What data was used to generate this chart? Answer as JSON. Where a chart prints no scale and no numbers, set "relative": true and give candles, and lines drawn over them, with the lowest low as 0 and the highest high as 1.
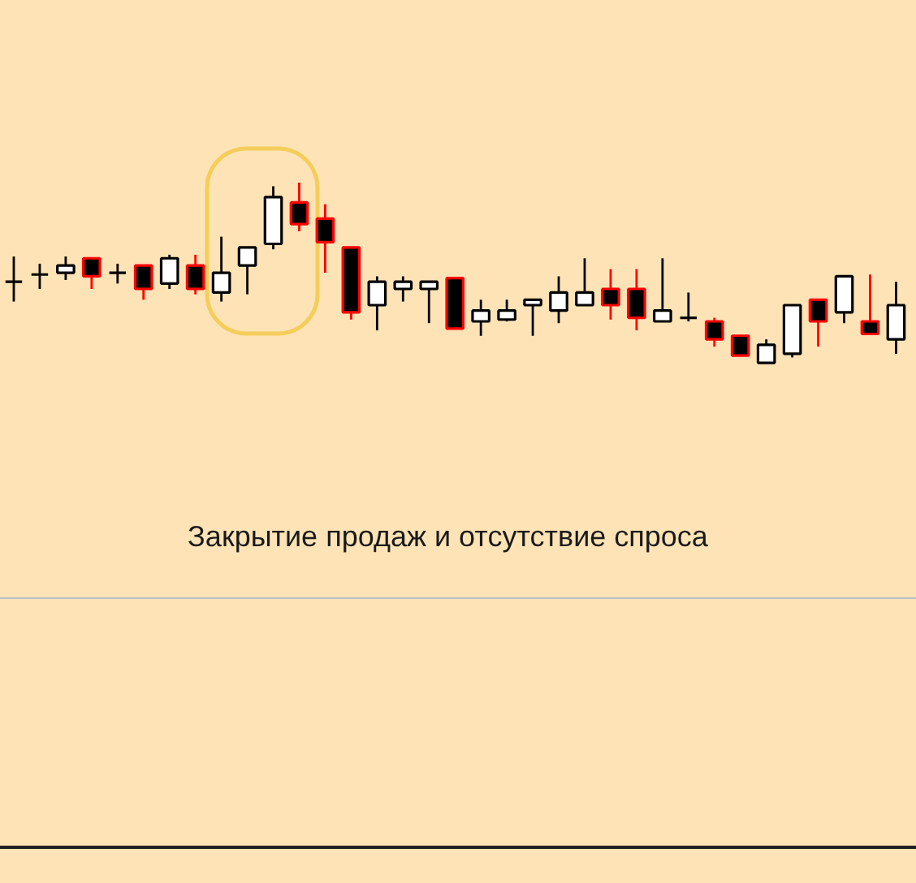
{
  "chart_data": {
    "type": "candlestick",
    "relative": true,
    "categories": [
      null,
      null,
      null,
      null,
      null,
      null,
      null,
      null,
      null,
      null,
      null,
      null,
      null,
      null,
      null,
      null,
      null,
      null,
      null,
      null,
      null,
      null,
      null,
      null,
      null,
      null,
      null,
      null,
      null,
      null,
      null,
      null,
      null,
      null,
      null
    ],
    "ohlc": [
      [
        0.45,
        0.59,
        0.34,
        0.45
      ],
      [
        0.49,
        0.55,
        0.41,
        0.49
      ],
      [
        0.5,
        0.59,
        0.46,
        0.54
      ],
      [
        0.58,
        0.58,
        0.41,
        0.48
      ],
      [
        0.5,
        0.55,
        0.44,
        0.5
      ],
      [
        0.54,
        0.54,
        0.35,
        0.41
      ],
      [
        0.44,
        0.6,
        0.41,
        0.58
      ],
      [
        0.54,
        0.6,
        0.38,
        0.41
      ],
      [
        0.39,
        0.7,
        0.34,
        0.5
      ],
      [
        0.54,
        0.64,
        0.38,
        0.64
      ],
      [
        0.66,
        0.98,
        0.63,
        0.92
      ],
      [
        0.89,
        1.0,
        0.73,
        0.77
      ],
      [
        0.8,
        0.88,
        0.5,
        0.67
      ],
      [
        0.64,
        0.64,
        0.24,
        0.28
      ],
      [
        0.32,
        0.48,
        0.18,
        0.45
      ],
      [
        0.41,
        0.48,
        0.34,
        0.45
      ],
      [
        0.41,
        0.45,
        0.22,
        0.45
      ],
      [
        0.47,
        0.47,
        0.19,
        0.19
      ],
      [
        0.23,
        0.35,
        0.15,
        0.29
      ],
      [
        0.24,
        0.35,
        0.23,
        0.29
      ],
      [
        0.32,
        0.35,
        0.15,
        0.35
      ],
      [
        0.29,
        0.48,
        0.22,
        0.39
      ],
      [
        0.32,
        0.58,
        0.32,
        0.39
      ],
      [
        0.41,
        0.52,
        0.24,
        0.32
      ],
      [
        0.41,
        0.52,
        0.18,
        0.25
      ],
      [
        0.23,
        0.58,
        0.23,
        0.29
      ],
      [
        0.25,
        0.39,
        0.23,
        0.25
      ],
      [
        0.23,
        0.25,
        0.09,
        0.13
      ],
      [
        0.15,
        0.15,
        0.04,
        0.04
      ],
      [
        0.0,
        0.13,
        0.0,
        0.1
      ],
      [
        0.05,
        0.32,
        0.03,
        0.32
      ],
      [
        0.35,
        0.35,
        0.09,
        0.23
      ],
      [
        0.28,
        0.48,
        0.22,
        0.48
      ],
      [
        0.23,
        0.49,
        0.16,
        0.16
      ],
      [
        0.13,
        0.45,
        0.05,
        0.32
      ]
    ],
    "colors": [
      "#000000",
      "#000000",
      "#000000",
      "#ff0000",
      "#000000",
      "#ff0000",
      "#000000",
      "#ff0000",
      "#000000",
      "#000000",
      "#000000",
      "#ff0000",
      "#ff0000",
      "#ff0000",
      "#000000",
      "#000000",
      "#000000",
      "#ff0000",
      "#000000",
      "#000000",
      "#000000",
      "#000000",
      "#000000",
      "#ff0000",
      "#ff0000",
      "#000000",
      "#000000",
      "#ff0000",
      "#ff0000",
      "#000000",
      "#000000",
      "#ff0000",
      "#000000",
      "#ff0000",
      "#000000"
    ],
    "annotations": [
      "Закрытие продаж и отсутствие спроса"
    ]
  }
}
